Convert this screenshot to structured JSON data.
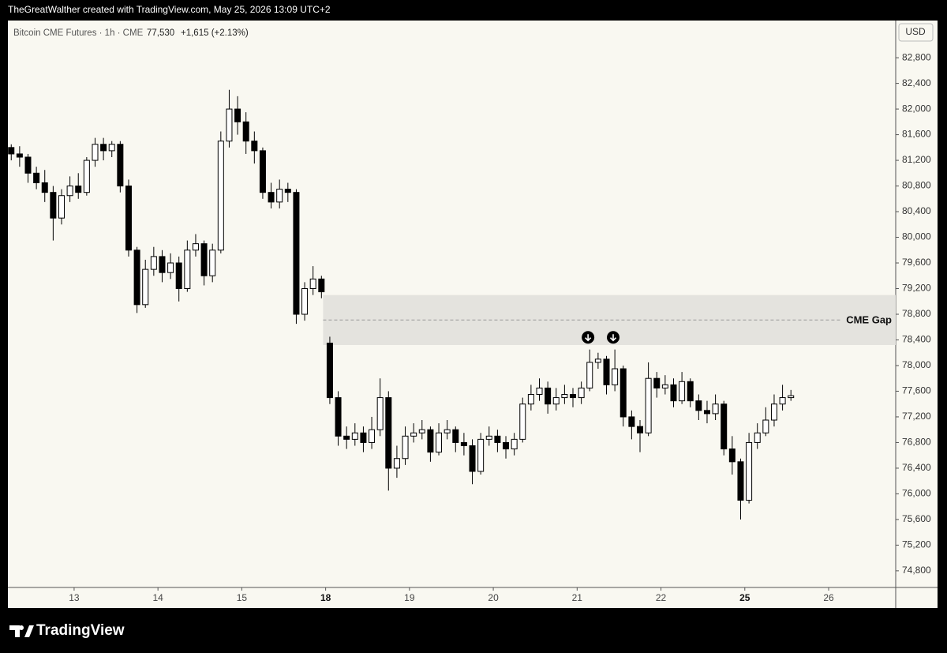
{
  "header": {
    "credit": "TheGreatWalther created with TradingView.com, May 25, 2026 13:09 UTC+2",
    "brand": "TradingView"
  },
  "chart_data": {
    "type": "candlestick",
    "title": "Bitcoin CME Futures · 1h · CME",
    "price": "77,530",
    "change": "+1,615 (+2.13%)",
    "currency": "USD",
    "up_color": "#ffffff",
    "down_color": "#000000",
    "wick_color": "#000000",
    "x": [
      0,
      1,
      2,
      3,
      4,
      5,
      6,
      7,
      8,
      9,
      10,
      11,
      12,
      13,
      14,
      15,
      16,
      17,
      18,
      19,
      20,
      21,
      22,
      23,
      24,
      25,
      26,
      27,
      28,
      29,
      30,
      31,
      32,
      33,
      34,
      35,
      36,
      37,
      38,
      39,
      40,
      41,
      42,
      43,
      44,
      45,
      46,
      47,
      48,
      49,
      50,
      51,
      52,
      53,
      54,
      55,
      56,
      57,
      58,
      59,
      60,
      61,
      62,
      63,
      64,
      65,
      66,
      67,
      68,
      69,
      70,
      71,
      72,
      73,
      74,
      75,
      76,
      77,
      78,
      79,
      80,
      81,
      82,
      83,
      84,
      85,
      86,
      87,
      88,
      89,
      90,
      91,
      92,
      93
    ],
    "open": [
      81400,
      81300,
      81250,
      81000,
      80850,
      80700,
      80300,
      80650,
      80800,
      80700,
      81200,
      81450,
      81350,
      81450,
      80800,
      79800,
      78950,
      79500,
      79700,
      79450,
      79600,
      79200,
      79800,
      79900,
      79400,
      79800,
      81500,
      82000,
      81800,
      81500,
      81350,
      80700,
      80550,
      80750,
      80700,
      78800,
      79200,
      79350,
      78350,
      77500,
      76900,
      76850,
      76950,
      76800,
      77000,
      77500,
      76400,
      76550,
      76900,
      76950,
      77000,
      76650,
      76950,
      77000,
      76800,
      76750,
      76350,
      76850,
      76900,
      76800,
      76700,
      76850,
      77400,
      77550,
      77650,
      77400,
      77500,
      77550,
      77500,
      77650,
      78050,
      78100,
      77700,
      77950,
      77200,
      77050,
      76950,
      77800,
      77650,
      77700,
      77450,
      77750,
      77450,
      77300,
      77250,
      77400,
      76700,
      76500,
      75900,
      76800,
      76950,
      77150,
      77400,
      77500
    ],
    "high": [
      81450,
      81420,
      81300,
      81100,
      81050,
      80800,
      80750,
      80950,
      81000,
      81250,
      81550,
      81550,
      81500,
      81500,
      80900,
      79850,
      79650,
      79850,
      79800,
      79750,
      79700,
      79950,
      80050,
      79950,
      79900,
      81650,
      82300,
      82200,
      81950,
      81650,
      81400,
      80850,
      80900,
      80850,
      80750,
      79300,
      79550,
      79400,
      78450,
      77600,
      77050,
      77100,
      77050,
      77200,
      77800,
      77600,
      76750,
      77050,
      77100,
      77150,
      77050,
      77100,
      77150,
      77050,
      76950,
      76850,
      76950,
      77050,
      77000,
      76900,
      76950,
      77500,
      77700,
      77800,
      77750,
      77650,
      77700,
      77650,
      77750,
      78250,
      78200,
      78150,
      78250,
      78000,
      77300,
      77150,
      78050,
      77900,
      77850,
      77800,
      77900,
      77800,
      77550,
      77450,
      77550,
      77450,
      76900,
      76550,
      76950,
      77100,
      77350,
      77550,
      77700,
      77620
    ],
    "low": [
      81200,
      81100,
      80850,
      80750,
      80550,
      79950,
      80200,
      80550,
      80600,
      80650,
      81100,
      81200,
      81250,
      80700,
      79700,
      78820,
      78900,
      79400,
      79300,
      79350,
      79000,
      79150,
      79700,
      79250,
      79300,
      79750,
      81400,
      81600,
      81300,
      81150,
      80600,
      80450,
      80450,
      80550,
      78650,
      78700,
      79100,
      79050,
      77400,
      76750,
      76700,
      76750,
      76650,
      76700,
      76900,
      76050,
      76250,
      76450,
      76800,
      76850,
      76500,
      76600,
      76850,
      76650,
      76600,
      76150,
      76300,
      76750,
      76650,
      76550,
      76600,
      76800,
      77300,
      77450,
      77250,
      77300,
      77400,
      77350,
      77400,
      77600,
      77950,
      77550,
      77600,
      77050,
      76850,
      76650,
      76900,
      77500,
      77550,
      77350,
      77400,
      77350,
      77150,
      77100,
      77150,
      76600,
      76300,
      75600,
      75850,
      76700,
      76900,
      77050,
      77300,
      77450
    ],
    "close": [
      81300,
      81250,
      81000,
      80850,
      80700,
      80300,
      80650,
      80800,
      80700,
      81200,
      81450,
      81350,
      81450,
      80800,
      79800,
      78950,
      79500,
      79700,
      79450,
      79600,
      79200,
      79800,
      79900,
      79400,
      79800,
      81500,
      82000,
      81800,
      81500,
      81350,
      80700,
      80550,
      80750,
      80700,
      78800,
      79200,
      79350,
      79150,
      77500,
      76900,
      76850,
      76950,
      76800,
      77000,
      77500,
      76400,
      76550,
      76900,
      76950,
      77000,
      76650,
      76950,
      77000,
      76800,
      76750,
      76350,
      76850,
      76900,
      76800,
      76700,
      76850,
      77400,
      77550,
      77650,
      77400,
      77500,
      77550,
      77500,
      77650,
      78050,
      78100,
      77700,
      77950,
      77200,
      77050,
      76950,
      77800,
      77650,
      77700,
      77450,
      77750,
      77450,
      77300,
      77250,
      77400,
      76700,
      76500,
      75900,
      76800,
      76950,
      77150,
      77400,
      77500,
      77530
    ],
    "xlim": [
      -0.4,
      105.5
    ],
    "ylim": [
      74540,
      83380
    ],
    "xticks": [
      {
        "value": 7.5,
        "label": "13"
      },
      {
        "value": 17.5,
        "label": "14"
      },
      {
        "value": 27.5,
        "label": "15"
      },
      {
        "value": 37.5,
        "label": "18",
        "emphasis": true
      },
      {
        "value": 47.5,
        "label": "19"
      },
      {
        "value": 57.5,
        "label": "20"
      },
      {
        "value": 67.5,
        "label": "21"
      },
      {
        "value": 77.5,
        "label": "22"
      },
      {
        "value": 87.5,
        "label": "25",
        "emphasis": true
      },
      {
        "value": 97.5,
        "label": "26"
      }
    ],
    "yticks": [
      {
        "value": 74800,
        "label": "74,800"
      },
      {
        "value": 75200,
        "label": "75,200"
      },
      {
        "value": 75600,
        "label": "75,600"
      },
      {
        "value": 76000,
        "label": "76,000"
      },
      {
        "value": 76400,
        "label": "76,400"
      },
      {
        "value": 76800,
        "label": "76,800"
      },
      {
        "value": 77200,
        "label": "77,200"
      },
      {
        "value": 77600,
        "label": "77,600"
      },
      {
        "value": 78000,
        "label": "78,000"
      },
      {
        "value": 78400,
        "label": "78,400"
      },
      {
        "value": 78800,
        "label": "78,800"
      },
      {
        "value": 79200,
        "label": "79,200"
      },
      {
        "value": 79600,
        "label": "79,600"
      },
      {
        "value": 80000,
        "label": "80,000"
      },
      {
        "value": 80400,
        "label": "80,400"
      },
      {
        "value": 80800,
        "label": "80,800"
      },
      {
        "value": 81200,
        "label": "81,200"
      },
      {
        "value": 81600,
        "label": "81,600"
      },
      {
        "value": 82000,
        "label": "82,000"
      },
      {
        "value": 82400,
        "label": "82,400"
      },
      {
        "value": 82800,
        "label": "82,800"
      }
    ],
    "zone": {
      "label": "CME Gap",
      "start": 37.2,
      "low": 78320,
      "high": 79100,
      "color": "#e4e3de"
    },
    "markers": [
      {
        "x": 68.8,
        "y": 78440
      },
      {
        "x": 71.8,
        "y": 78440
      }
    ]
  }
}
